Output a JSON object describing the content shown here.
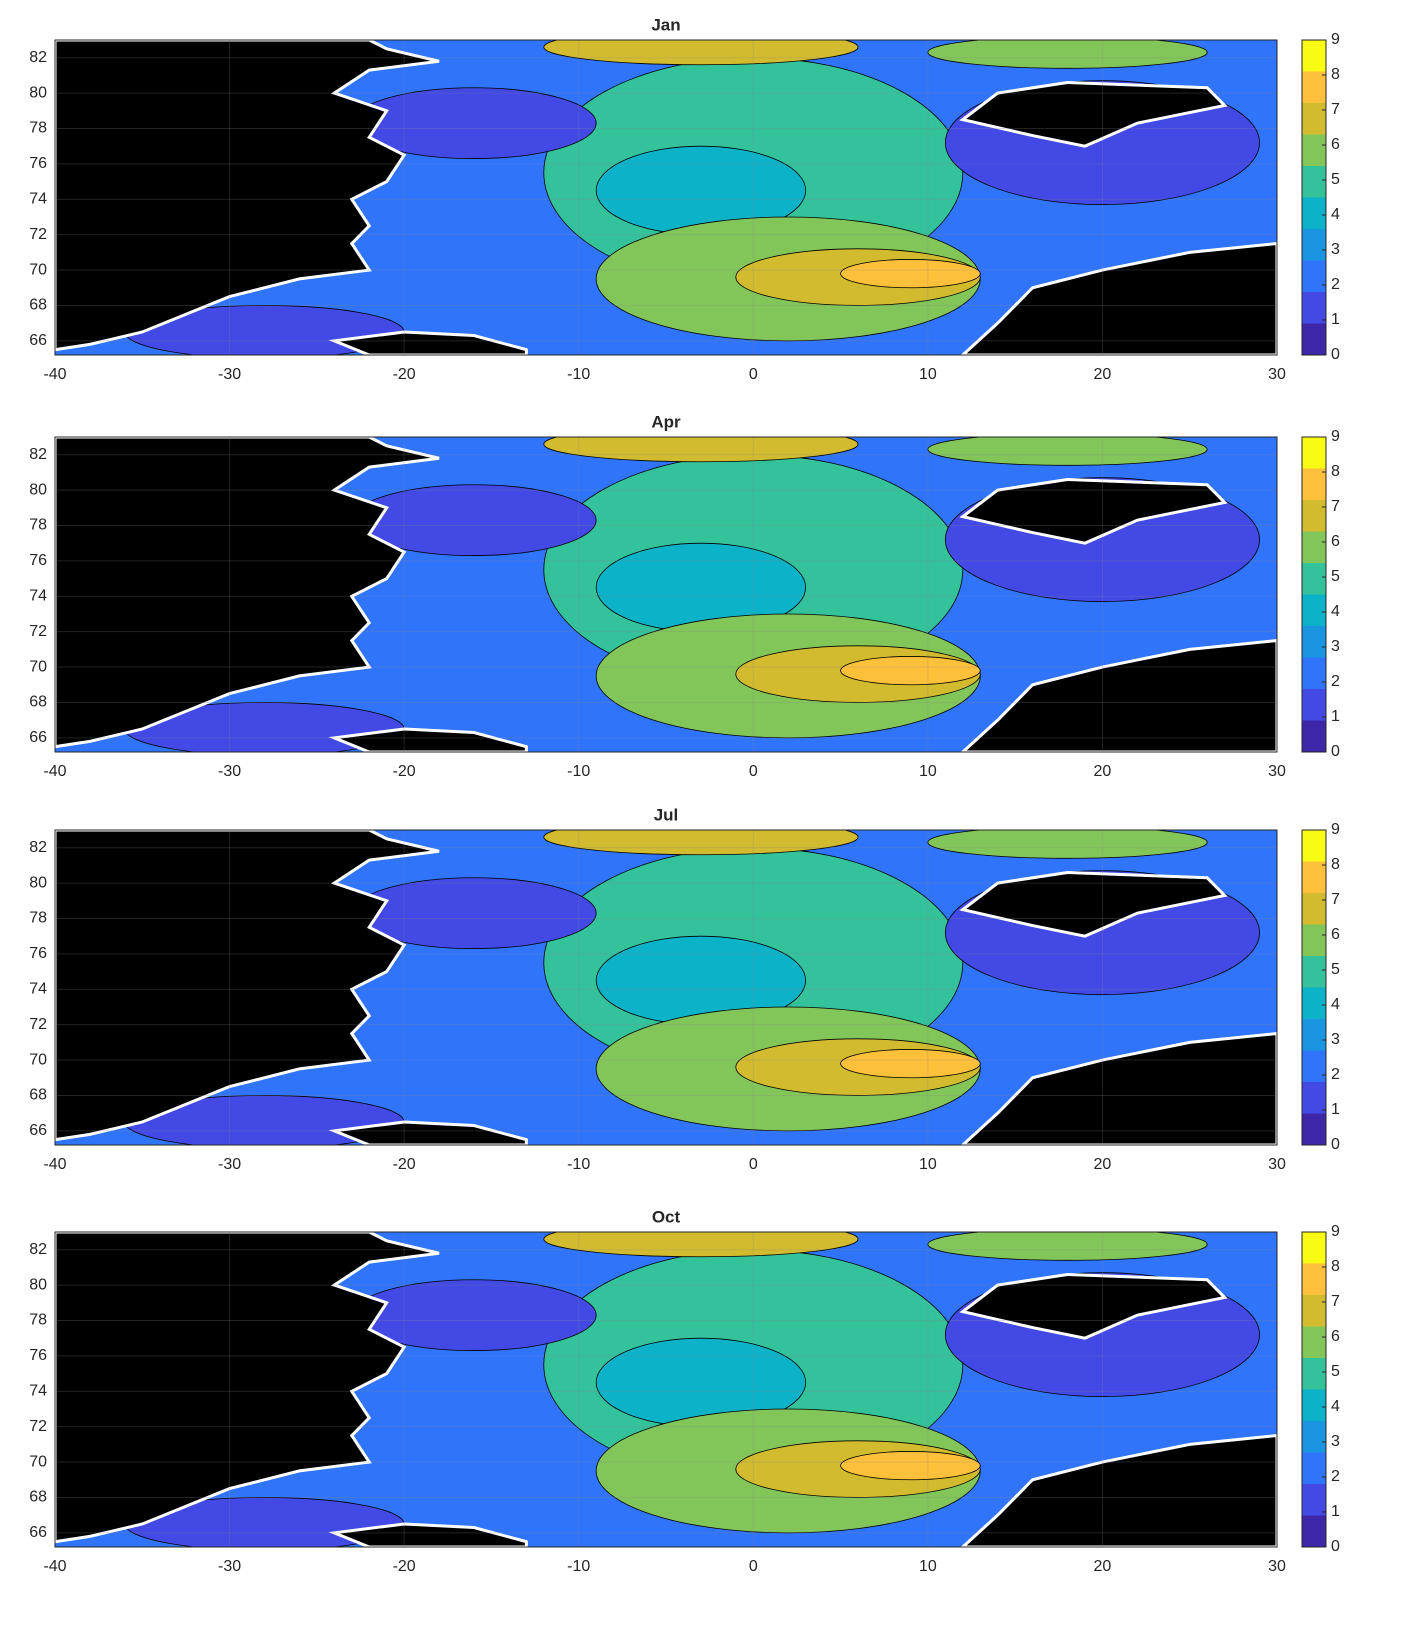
{
  "chart_data": [
    {
      "type": "contour",
      "title": "Jan",
      "xlim": [
        -40,
        30
      ],
      "ylim": [
        65.2,
        83
      ],
      "xticks": [
        -40,
        -30,
        -20,
        -10,
        0,
        10,
        20,
        30
      ],
      "yticks": [
        66,
        68,
        70,
        72,
        74,
        76,
        78,
        80,
        82
      ],
      "grid": true,
      "clim": [
        0,
        9
      ],
      "cticks": [
        0,
        1,
        2,
        3,
        4,
        5,
        6,
        7,
        8,
        9
      ],
      "colormap": [
        "#3e26a8",
        "#4249e4",
        "#2f74fa",
        "#1a96e0",
        "#0bb2c8",
        "#34c29b",
        "#82c65a",
        "#d2bb2e",
        "#fdc03a",
        "#f9fb15"
      ]
    },
    {
      "type": "contour",
      "title": "Apr",
      "xlim": [
        -40,
        30
      ],
      "ylim": [
        65.2,
        83
      ],
      "xticks": [
        -40,
        -30,
        -20,
        -10,
        0,
        10,
        20,
        30
      ],
      "yticks": [
        66,
        68,
        70,
        72,
        74,
        76,
        78,
        80,
        82
      ],
      "grid": true,
      "clim": [
        0,
        9
      ],
      "cticks": [
        0,
        1,
        2,
        3,
        4,
        5,
        6,
        7,
        8,
        9
      ],
      "colormap": [
        "#3e26a8",
        "#4249e4",
        "#2f74fa",
        "#1a96e0",
        "#0bb2c8",
        "#34c29b",
        "#82c65a",
        "#d2bb2e",
        "#fdc03a",
        "#f9fb15"
      ]
    },
    {
      "type": "contour",
      "title": "Jul",
      "xlim": [
        -40,
        30
      ],
      "ylim": [
        65.2,
        83
      ],
      "xticks": [
        -40,
        -30,
        -20,
        -10,
        0,
        10,
        20,
        30
      ],
      "yticks": [
        66,
        68,
        70,
        72,
        74,
        76,
        78,
        80,
        82
      ],
      "grid": true,
      "clim": [
        0,
        9
      ],
      "cticks": [
        0,
        1,
        2,
        3,
        4,
        5,
        6,
        7,
        8,
        9
      ],
      "colormap": [
        "#3e26a8",
        "#4249e4",
        "#2f74fa",
        "#1a96e0",
        "#0bb2c8",
        "#34c29b",
        "#82c65a",
        "#d2bb2e",
        "#fdc03a",
        "#f9fb15"
      ]
    },
    {
      "type": "contour",
      "title": "Oct",
      "xlim": [
        -40,
        30
      ],
      "ylim": [
        65.2,
        83
      ],
      "xticks": [
        -40,
        -30,
        -20,
        -10,
        0,
        10,
        20,
        30
      ],
      "yticks": [
        66,
        68,
        70,
        72,
        74,
        76,
        78,
        80,
        82
      ],
      "grid": true,
      "clim": [
        0,
        9
      ],
      "cticks": [
        0,
        1,
        2,
        3,
        4,
        5,
        6,
        7,
        8,
        9
      ],
      "colormap": [
        "#3e26a8",
        "#4249e4",
        "#2f74fa",
        "#1a96e0",
        "#0bb2c8",
        "#34c29b",
        "#82c65a",
        "#d2bb2e",
        "#fdc03a",
        "#f9fb15"
      ]
    }
  ]
}
